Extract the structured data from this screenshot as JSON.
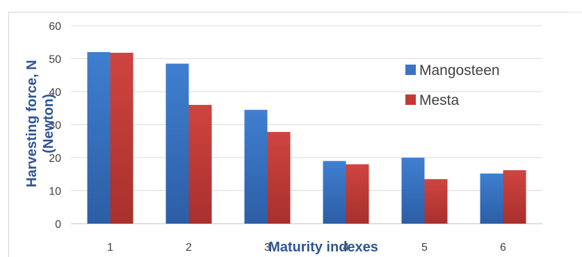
{
  "chart_data": {
    "type": "bar",
    "categories": [
      "1",
      "2",
      "3",
      "4",
      "5",
      "6"
    ],
    "series": [
      {
        "name": "Mangosteen",
        "values": [
          52,
          48.5,
          34.5,
          19,
          20,
          15.2
        ],
        "color": "#3a74c2"
      },
      {
        "name": "Mesta",
        "values": [
          51.8,
          36,
          27.8,
          18,
          13.5,
          16.2
        ],
        "color": "#c23a37"
      }
    ],
    "xlabel": "Maturity indexes",
    "ylabel_line1": "Harvesting force, N",
    "ylabel_line2": "(Newton)",
    "ylim": [
      0,
      60
    ],
    "yticks": [
      "0",
      "10",
      "20",
      "30",
      "40",
      "50",
      "60"
    ],
    "grid": true,
    "legend_position": "right"
  }
}
